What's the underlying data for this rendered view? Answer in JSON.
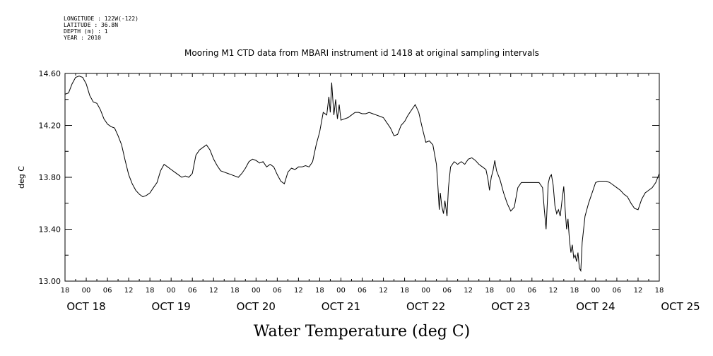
{
  "header": {
    "lines": [
      "LONGITUDE : 122W(-122)",
      "LATITUDE : 36.8N",
      "DEPTH (m) : 1",
      "YEAR : 2010"
    ]
  },
  "chart_data": {
    "type": "line",
    "title": "Mooring M1 CTD data from MBARI instrument id 1418 at original sampling intervals",
    "xlabel": "Water Temperature (deg C)",
    "ylabel": "deg C",
    "ylim": [
      13.0,
      14.6
    ],
    "yticks": [
      "13.00",
      "13.40",
      "13.80",
      "14.20",
      "14.60"
    ],
    "x_unit": "hours since OCT 17 18:00, 2010",
    "xlim": [
      0,
      168
    ],
    "x_hour_labels": [
      "18",
      "00",
      "06",
      "12",
      "18",
      "00",
      "06",
      "12",
      "18",
      "00",
      "06",
      "12",
      "18",
      "00",
      "06",
      "12",
      "18",
      "00",
      "06",
      "12",
      "18",
      "00",
      "06",
      "12",
      "18",
      "00",
      "06",
      "12",
      "18"
    ],
    "x_day_labels": [
      "OCT 18",
      "OCT 19",
      "OCT 20",
      "OCT 21",
      "OCT 22",
      "OCT 23",
      "OCT 24",
      "OCT 25"
    ],
    "grid": false,
    "series": [
      {
        "name": "",
        "points": [
          [
            0,
            14.44
          ],
          [
            1,
            14.45
          ],
          [
            2,
            14.52
          ],
          [
            3,
            14.57
          ],
          [
            4,
            14.58
          ],
          [
            5,
            14.57
          ],
          [
            6,
            14.52
          ],
          [
            7,
            14.43
          ],
          [
            8,
            14.38
          ],
          [
            9,
            14.37
          ],
          [
            10,
            14.32
          ],
          [
            11,
            14.25
          ],
          [
            12,
            14.21
          ],
          [
            13,
            14.19
          ],
          [
            14,
            14.18
          ],
          [
            15,
            14.12
          ],
          [
            16,
            14.05
          ],
          [
            17,
            13.93
          ],
          [
            18,
            13.82
          ],
          [
            19,
            13.75
          ],
          [
            20,
            13.7
          ],
          [
            21,
            13.67
          ],
          [
            22,
            13.65
          ],
          [
            23,
            13.66
          ],
          [
            24,
            13.68
          ],
          [
            25,
            13.72
          ],
          [
            26,
            13.76
          ],
          [
            27,
            13.85
          ],
          [
            28,
            13.9
          ],
          [
            29,
            13.88
          ],
          [
            30,
            13.86
          ],
          [
            31,
            13.84
          ],
          [
            32,
            13.82
          ],
          [
            33,
            13.8
          ],
          [
            34,
            13.81
          ],
          [
            35,
            13.8
          ],
          [
            36,
            13.83
          ],
          [
            37,
            13.97
          ],
          [
            38,
            14.01
          ],
          [
            39,
            14.03
          ],
          [
            40,
            14.05
          ],
          [
            41,
            14.01
          ],
          [
            42,
            13.94
          ],
          [
            43,
            13.89
          ],
          [
            44,
            13.85
          ],
          [
            45,
            13.84
          ],
          [
            46,
            13.83
          ],
          [
            47,
            13.82
          ],
          [
            48,
            13.81
          ],
          [
            49,
            13.8
          ],
          [
            50,
            13.83
          ],
          [
            51,
            13.87
          ],
          [
            52,
            13.92
          ],
          [
            53,
            13.94
          ],
          [
            54,
            13.93
          ],
          [
            55,
            13.91
          ],
          [
            56,
            13.92
          ],
          [
            57,
            13.88
          ],
          [
            58,
            13.9
          ],
          [
            59,
            13.88
          ],
          [
            60,
            13.82
          ],
          [
            61,
            13.77
          ],
          [
            62,
            13.75
          ],
          [
            63,
            13.84
          ],
          [
            64,
            13.87
          ],
          [
            65,
            13.86
          ],
          [
            66,
            13.88
          ],
          [
            67,
            13.88
          ],
          [
            68,
            13.89
          ],
          [
            69,
            13.88
          ],
          [
            70,
            13.92
          ],
          [
            71,
            14.05
          ],
          [
            72,
            14.15
          ],
          [
            73,
            14.3
          ],
          [
            74,
            14.28
          ],
          [
            74.6,
            14.42
          ],
          [
            75,
            14.3
          ],
          [
            75.4,
            14.53
          ],
          [
            76,
            14.28
          ],
          [
            76.5,
            14.4
          ],
          [
            77,
            14.25
          ],
          [
            77.5,
            14.36
          ],
          [
            78,
            14.24
          ],
          [
            79,
            14.25
          ],
          [
            80,
            14.26
          ],
          [
            81,
            14.28
          ],
          [
            82,
            14.3
          ],
          [
            83,
            14.3
          ],
          [
            84,
            14.29
          ],
          [
            85,
            14.29
          ],
          [
            86,
            14.3
          ],
          [
            87,
            14.29
          ],
          [
            88,
            14.28
          ],
          [
            89,
            14.27
          ],
          [
            90,
            14.26
          ],
          [
            91,
            14.22
          ],
          [
            92,
            14.18
          ],
          [
            93,
            14.12
          ],
          [
            94,
            14.13
          ],
          [
            95,
            14.2
          ],
          [
            96,
            14.23
          ],
          [
            97,
            14.28
          ],
          [
            98,
            14.32
          ],
          [
            99,
            14.36
          ],
          [
            100,
            14.3
          ],
          [
            101,
            14.18
          ],
          [
            102,
            14.07
          ],
          [
            103,
            14.08
          ],
          [
            104,
            14.05
          ],
          [
            105,
            13.9
          ],
          [
            105.4,
            13.74
          ],
          [
            105.8,
            13.55
          ],
          [
            106.1,
            13.68
          ],
          [
            106.5,
            13.58
          ],
          [
            107,
            13.52
          ],
          [
            107.4,
            13.62
          ],
          [
            108,
            13.5
          ],
          [
            108.4,
            13.72
          ],
          [
            109,
            13.88
          ],
          [
            110,
            13.92
          ],
          [
            111,
            13.9
          ],
          [
            112,
            13.92
          ],
          [
            113,
            13.9
          ],
          [
            114,
            13.94
          ],
          [
            115,
            13.95
          ],
          [
            116,
            13.93
          ],
          [
            117,
            13.9
          ],
          [
            118,
            13.88
          ],
          [
            119,
            13.86
          ],
          [
            119.6,
            13.78
          ],
          [
            120,
            13.7
          ],
          [
            120.5,
            13.8
          ],
          [
            121,
            13.85
          ],
          [
            121.5,
            13.93
          ],
          [
            122,
            13.85
          ],
          [
            123,
            13.78
          ],
          [
            124,
            13.68
          ],
          [
            125,
            13.6
          ],
          [
            126,
            13.54
          ],
          [
            127,
            13.57
          ],
          [
            128,
            13.72
          ],
          [
            129,
            13.76
          ],
          [
            130,
            13.76
          ],
          [
            131,
            13.76
          ],
          [
            132,
            13.76
          ],
          [
            133,
            13.76
          ],
          [
            134,
            13.76
          ],
          [
            135,
            13.72
          ],
          [
            135.5,
            13.55
          ],
          [
            136,
            13.4
          ],
          [
            136.6,
            13.75
          ],
          [
            137,
            13.8
          ],
          [
            137.5,
            13.82
          ],
          [
            138,
            13.74
          ],
          [
            138.5,
            13.58
          ],
          [
            139,
            13.52
          ],
          [
            139.5,
            13.55
          ],
          [
            140,
            13.5
          ],
          [
            140.5,
            13.62
          ],
          [
            141,
            13.73
          ],
          [
            141.4,
            13.55
          ],
          [
            141.8,
            13.4
          ],
          [
            142.2,
            13.48
          ],
          [
            142.6,
            13.32
          ],
          [
            143,
            13.22
          ],
          [
            143.4,
            13.28
          ],
          [
            143.8,
            13.18
          ],
          [
            144.2,
            13.2
          ],
          [
            144.6,
            13.15
          ],
          [
            145,
            13.22
          ],
          [
            145.4,
            13.1
          ],
          [
            145.8,
            13.08
          ],
          [
            146.2,
            13.3
          ],
          [
            147,
            13.5
          ],
          [
            148,
            13.6
          ],
          [
            149,
            13.68
          ],
          [
            150,
            13.76
          ],
          [
            151,
            13.77
          ],
          [
            152,
            13.77
          ],
          [
            153,
            13.77
          ],
          [
            154,
            13.76
          ],
          [
            155,
            13.74
          ],
          [
            156,
            13.72
          ],
          [
            157,
            13.7
          ],
          [
            158,
            13.67
          ],
          [
            159,
            13.65
          ],
          [
            160,
            13.6
          ],
          [
            161,
            13.56
          ],
          [
            162,
            13.55
          ],
          [
            163,
            13.63
          ],
          [
            164,
            13.68
          ],
          [
            165,
            13.7
          ],
          [
            166,
            13.72
          ],
          [
            167,
            13.76
          ],
          [
            168,
            13.83
          ]
        ]
      }
    ]
  }
}
